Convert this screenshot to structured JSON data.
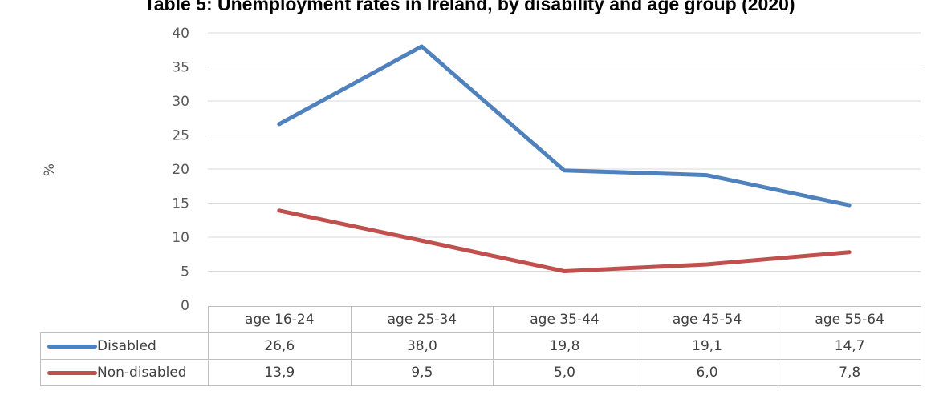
{
  "chart_data": {
    "type": "line",
    "title": "Table 5: Unemployment rates in Ireland, by disability and age group (2020)",
    "ylabel": "%",
    "xlabel": "",
    "ylim": [
      0,
      40
    ],
    "yticks": [
      "0",
      "5",
      "10",
      "15",
      "20",
      "25",
      "30",
      "35",
      "40"
    ],
    "grid": true,
    "legend": "data-table",
    "categories": [
      "age 16-24",
      "age 25-34",
      "age 35-44",
      "age 45-54",
      "age 55-64"
    ],
    "series": [
      {
        "name": "Disabled",
        "color": "#4f81bd",
        "values": [
          26.6,
          38.0,
          19.8,
          19.1,
          14.7
        ],
        "labels": [
          "26,6",
          "38,0",
          "19,8",
          "19,1",
          "14,7"
        ]
      },
      {
        "name": "Non-disabled",
        "color": "#c0504d",
        "values": [
          13.9,
          9.5,
          5.0,
          6.0,
          7.8
        ],
        "labels": [
          "13,9",
          "9,5",
          "5,0",
          "6,0",
          "7,8"
        ]
      }
    ]
  }
}
